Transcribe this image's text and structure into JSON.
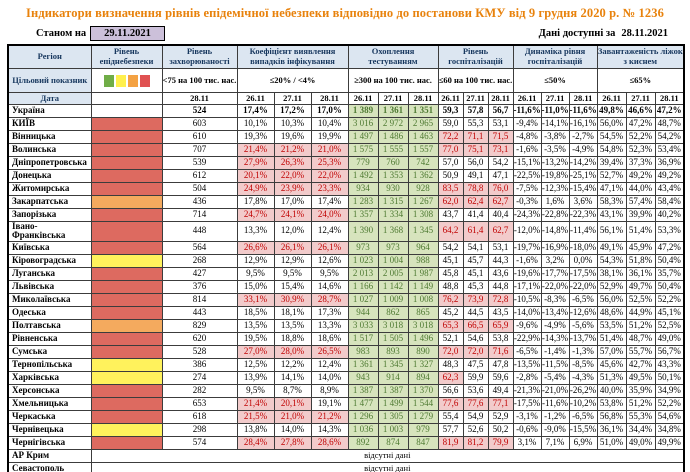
{
  "title": "Індикатори визначення рівнів епідемічної небезпеки відповідно до постанови КМУ від 9 грудня 2020 р. № 1236",
  "as_of": {
    "label": "Станом на",
    "date": "29.11.2021"
  },
  "data_available": {
    "label": "Дані доступні за",
    "date": "28.11.2021"
  },
  "columns": {
    "region": "Регіон",
    "target": "Цільовий показник",
    "date": "Дата",
    "groups": [
      {
        "title": "Рівень епіднебезпеки",
        "target": ""
      },
      {
        "title": "Рівень захворюваності",
        "target": "<75 на 100 тис. нас.",
        "date": "28.11"
      },
      {
        "title": "Коефіцієнт виявлення випадків інфікування",
        "target": "≤20% / <4%"
      },
      {
        "title": "Охоплення тестуванням",
        "target": "≥300 на 100 тис. нас."
      },
      {
        "title": "Рівень госпіталізацій",
        "target": "≤60 на 100 тис. нас."
      },
      {
        "title": "Динаміка рівня госпіталізацій",
        "target": "≤50%"
      },
      {
        "title": "Завантаженість ліжок з киснем",
        "target": "≤65%"
      }
    ]
  },
  "dates": [
    "26.11",
    "27.11",
    "28.11"
  ],
  "legend_colors": [
    "#70AD47",
    "#FFF04D",
    "#F4A243",
    "#E05252"
  ],
  "level_colors": {
    "red": "#DD6A60",
    "orange": "#F4AA5E",
    "yellow": "#FFF25C",
    "none": "#FFFFFF"
  },
  "no_data_text": "відсутні дані",
  "rows": [
    {
      "region": "Україна",
      "level": "none",
      "incidence": "524",
      "coef": [
        "17,4%",
        "17,2%",
        "17,0%"
      ],
      "test": [
        "1 389",
        "1 361",
        "1 351"
      ],
      "hosp": [
        "59,3",
        "57,8",
        "56,7"
      ],
      "dyn": [
        "-11,6%",
        "-11,0%",
        "-11,6%"
      ],
      "beds": [
        "49,8%",
        "46,6%",
        "47,2%"
      ]
    },
    {
      "region": "КИЇВ",
      "level": "red",
      "incidence": "603",
      "coef": [
        "10,1%",
        "10,3%",
        "10,4%"
      ],
      "test": [
        "3 016",
        "2 972",
        "2 965"
      ],
      "hosp": [
        "59,0",
        "55,3",
        "53,1"
      ],
      "dyn": [
        "-9,4%",
        "-14,1%",
        "-16,1%"
      ],
      "beds": [
        "56,0%",
        "47,2%",
        "48,7%"
      ]
    },
    {
      "region": "Вінницька",
      "level": "red",
      "incidence": "610",
      "coef": [
        "19,3%",
        "19,6%",
        "19,9%"
      ],
      "test": [
        "1 497",
        "1 486",
        "1 463"
      ],
      "hosp": [
        "72,2",
        "71,1",
        "71,5"
      ],
      "dyn": [
        "-4,8%",
        "-3,8%",
        "-2,7%"
      ],
      "beds": [
        "54,5%",
        "52,2%",
        "54,2%"
      ]
    },
    {
      "region": "Волинська",
      "level": "red",
      "incidence": "707",
      "coef": [
        "21,4%",
        "21,2%",
        "21,0%"
      ],
      "test": [
        "1 575",
        "1 555",
        "1 557"
      ],
      "hosp": [
        "77,0",
        "75,1",
        "73,1"
      ],
      "dyn": [
        "-1,6%",
        "-3,5%",
        "-4,9%"
      ],
      "beds": [
        "54,8%",
        "52,3%",
        "53,4%"
      ]
    },
    {
      "region": "Дніпропетровська",
      "level": "red",
      "incidence": "539",
      "coef": [
        "27,9%",
        "26,3%",
        "25,3%"
      ],
      "test": [
        "779",
        "760",
        "742"
      ],
      "hosp": [
        "57,0",
        "56,0",
        "54,2"
      ],
      "dyn": [
        "-15,1%",
        "-13,2%",
        "-14,2%"
      ],
      "beds": [
        "39,4%",
        "37,3%",
        "36,9%"
      ]
    },
    {
      "region": "Донецька",
      "level": "red",
      "incidence": "612",
      "coef": [
        "20,1%",
        "22,0%",
        "22,0%"
      ],
      "test": [
        "1 492",
        "1 353",
        "1 362"
      ],
      "hosp": [
        "50,9",
        "49,1",
        "47,1"
      ],
      "dyn": [
        "-22,5%",
        "-19,8%",
        "-25,1%"
      ],
      "beds": [
        "52,7%",
        "49,2%",
        "49,2%"
      ]
    },
    {
      "region": "Житомирська",
      "level": "red",
      "incidence": "504",
      "coef": [
        "24,9%",
        "23,9%",
        "23,3%"
      ],
      "test": [
        "934",
        "930",
        "928"
      ],
      "hosp": [
        "83,5",
        "78,8",
        "76,0"
      ],
      "dyn": [
        "-7,5%",
        "-12,3%",
        "-15,4%"
      ],
      "beds": [
        "47,1%",
        "44,0%",
        "43,4%"
      ]
    },
    {
      "region": "Закарпатська",
      "level": "orange",
      "incidence": "436",
      "coef": [
        "17,8%",
        "17,0%",
        "17,4%"
      ],
      "test": [
        "1 283",
        "1 315",
        "1 267"
      ],
      "hosp": [
        "62,0",
        "62,4",
        "62,7"
      ],
      "dyn": [
        "-0,3%",
        "1,6%",
        "3,6%"
      ],
      "beds": [
        "58,3%",
        "57,4%",
        "58,4%"
      ]
    },
    {
      "region": "Запорізька",
      "level": "red",
      "incidence": "714",
      "coef": [
        "24,7%",
        "24,1%",
        "24,0%"
      ],
      "test": [
        "1 357",
        "1 334",
        "1 308"
      ],
      "hosp": [
        "43,7",
        "41,4",
        "40,4"
      ],
      "dyn": [
        "-24,3%",
        "-22,8%",
        "-22,3%"
      ],
      "beds": [
        "43,1%",
        "39,9%",
        "40,2%"
      ]
    },
    {
      "region": "Івано-Франківська",
      "level": "red",
      "incidence": "448",
      "coef": [
        "13,3%",
        "12,0%",
        "12,4%"
      ],
      "test": [
        "1 390",
        "1 368",
        "1 345"
      ],
      "hosp": [
        "64,2",
        "61,4",
        "62,7"
      ],
      "dyn": [
        "-12,0%",
        "-14,8%",
        "-11,4%"
      ],
      "beds": [
        "56,1%",
        "51,4%",
        "53,3%"
      ]
    },
    {
      "region": "Київська",
      "level": "red",
      "incidence": "564",
      "coef": [
        "26,6%",
        "26,1%",
        "26,1%"
      ],
      "test": [
        "973",
        "973",
        "964"
      ],
      "hosp": [
        "54,2",
        "54,1",
        "53,1"
      ],
      "dyn": [
        "-19,7%",
        "-16,9%",
        "-18,0%"
      ],
      "beds": [
        "49,1%",
        "45,9%",
        "47,2%"
      ]
    },
    {
      "region": "Кіровоградська",
      "level": "yellow",
      "incidence": "268",
      "coef": [
        "12,9%",
        "12,9%",
        "12,6%"
      ],
      "test": [
        "1 023",
        "1 004",
        "988"
      ],
      "hosp": [
        "45,1",
        "45,7",
        "44,3"
      ],
      "dyn": [
        "-1,6%",
        "3,2%",
        "0,0%"
      ],
      "beds": [
        "54,3%",
        "51,8%",
        "50,4%"
      ]
    },
    {
      "region": "Луганська",
      "level": "red",
      "incidence": "427",
      "coef": [
        "9,5%",
        "9,5%",
        "9,5%"
      ],
      "test": [
        "2 013",
        "2 005",
        "1 987"
      ],
      "hosp": [
        "45,8",
        "45,1",
        "43,6"
      ],
      "dyn": [
        "-19,6%",
        "-17,7%",
        "-17,5%"
      ],
      "beds": [
        "38,1%",
        "36,1%",
        "35,7%"
      ]
    },
    {
      "region": "Львівська",
      "level": "red",
      "incidence": "376",
      "coef": [
        "15,0%",
        "15,4%",
        "14,6%"
      ],
      "test": [
        "1 166",
        "1 142",
        "1 149"
      ],
      "hosp": [
        "48,8",
        "45,3",
        "44,8"
      ],
      "dyn": [
        "-17,1%",
        "-22,0%",
        "-22,0%"
      ],
      "beds": [
        "52,9%",
        "49,7%",
        "50,4%"
      ]
    },
    {
      "region": "Миколаївська",
      "level": "red",
      "incidence": "814",
      "coef": [
        "33,1%",
        "30,9%",
        "28,7%"
      ],
      "test": [
        "1 027",
        "1 009",
        "1 008"
      ],
      "hosp": [
        "76,2",
        "73,9",
        "72,8"
      ],
      "dyn": [
        "-10,5%",
        "-8,3%",
        "-6,5%"
      ],
      "beds": [
        "56,0%",
        "52,5%",
        "52,2%"
      ]
    },
    {
      "region": "Одеська",
      "level": "red",
      "incidence": "443",
      "coef": [
        "18,5%",
        "18,1%",
        "17,3%"
      ],
      "test": [
        "944",
        "862",
        "865"
      ],
      "hosp": [
        "45,2",
        "44,5",
        "43,5"
      ],
      "dyn": [
        "-14,0%",
        "-13,4%",
        "-12,6%"
      ],
      "beds": [
        "48,6%",
        "44,9%",
        "45,1%"
      ]
    },
    {
      "region": "Полтавська",
      "level": "orange",
      "incidence": "829",
      "coef": [
        "13,5%",
        "13,5%",
        "13,3%"
      ],
      "test": [
        "3 033",
        "3 018",
        "3 018"
      ],
      "hosp": [
        "65,3",
        "66,5",
        "65,9"
      ],
      "dyn": [
        "-9,6%",
        "-4,9%",
        "-5,6%"
      ],
      "beds": [
        "53,5%",
        "51,2%",
        "52,5%"
      ]
    },
    {
      "region": "Рівненська",
      "level": "red",
      "incidence": "620",
      "coef": [
        "19,5%",
        "18,8%",
        "18,6%"
      ],
      "test": [
        "1 517",
        "1 505",
        "1 496"
      ],
      "hosp": [
        "52,1",
        "54,6",
        "53,8"
      ],
      "dyn": [
        "-22,9%",
        "-14,3%",
        "-13,7%"
      ],
      "beds": [
        "51,4%",
        "48,7%",
        "49,0%"
      ]
    },
    {
      "region": "Сумська",
      "level": "red",
      "incidence": "528",
      "coef": [
        "27,0%",
        "28,0%",
        "26,5%"
      ],
      "test": [
        "983",
        "893",
        "890"
      ],
      "hosp": [
        "72,0",
        "72,0",
        "71,6"
      ],
      "dyn": [
        "-6,5%",
        "-1,4%",
        "-1,3%"
      ],
      "beds": [
        "57,0%",
        "55,7%",
        "56,7%"
      ]
    },
    {
      "region": "Тернопільська",
      "level": "yellow",
      "incidence": "386",
      "coef": [
        "12,5%",
        "12,2%",
        "12,4%"
      ],
      "test": [
        "1 361",
        "1 345",
        "1 327"
      ],
      "hosp": [
        "48,3",
        "47,5",
        "47,8"
      ],
      "dyn": [
        "-13,5%",
        "-11,5%",
        "-8,5%"
      ],
      "beds": [
        "45,6%",
        "42,7%",
        "43,3%"
      ]
    },
    {
      "region": "Харківська",
      "level": "yellow",
      "incidence": "274",
      "coef": [
        "13,9%",
        "14,1%",
        "14,0%"
      ],
      "test": [
        "943",
        "914",
        "894"
      ],
      "hosp": [
        "62,3",
        "59,9",
        "59,6"
      ],
      "dyn": [
        "-2,8%",
        "-5,4%",
        "-4,3%"
      ],
      "beds": [
        "51,3%",
        "49,5%",
        "50,1%"
      ]
    },
    {
      "region": "Херсонська",
      "level": "red",
      "incidence": "282",
      "coef": [
        "9,5%",
        "8,7%",
        "8,9%"
      ],
      "test": [
        "1 387",
        "1 387",
        "1 370"
      ],
      "hosp": [
        "56,6",
        "53,6",
        "49,4"
      ],
      "dyn": [
        "-21,3%",
        "-21,0%",
        "-26,2%"
      ],
      "beds": [
        "40,0%",
        "35,9%",
        "34,9%"
      ]
    },
    {
      "region": "Хмельницька",
      "level": "red",
      "incidence": "653",
      "coef": [
        "21,4%",
        "20,1%",
        "19,1%"
      ],
      "test": [
        "1 477",
        "1 499",
        "1 544"
      ],
      "hosp": [
        "77,6",
        "77,6",
        "77,1"
      ],
      "dyn": [
        "-17,5%",
        "-11,6%",
        "-10,2%"
      ],
      "beds": [
        "53,8%",
        "51,2%",
        "52,2%"
      ]
    },
    {
      "region": "Черкаська",
      "level": "red",
      "incidence": "618",
      "coef": [
        "21,5%",
        "21,0%",
        "21,2%"
      ],
      "test": [
        "1 296",
        "1 305",
        "1 279"
      ],
      "hosp": [
        "55,4",
        "54,9",
        "52,9"
      ],
      "dyn": [
        "-3,1%",
        "-1,2%",
        "-6,5%"
      ],
      "beds": [
        "56,8%",
        "55,3%",
        "54,6%"
      ]
    },
    {
      "region": "Чернівецька",
      "level": "yellow",
      "incidence": "298",
      "coef": [
        "13,8%",
        "14,0%",
        "14,3%"
      ],
      "test": [
        "1 036",
        "1 003",
        "979"
      ],
      "hosp": [
        "57,7",
        "52,6",
        "50,2"
      ],
      "dyn": [
        "-0,6%",
        "-9,0%",
        "-15,5%"
      ],
      "beds": [
        "36,1%",
        "34,4%",
        "34,8%"
      ]
    },
    {
      "region": "Чернігівська",
      "level": "red",
      "incidence": "574",
      "coef": [
        "28,4%",
        "27,8%",
        "28,6%"
      ],
      "test": [
        "892",
        "874",
        "847"
      ],
      "hosp": [
        "81,9",
        "81,2",
        "79,9"
      ],
      "dyn": [
        "3,1%",
        "7,1%",
        "6,9%"
      ],
      "beds": [
        "51,0%",
        "49,0%",
        "49,9%"
      ]
    },
    {
      "region": "АР Крим",
      "level": "none",
      "no_data": true
    },
    {
      "region": "Севастополь",
      "level": "none",
      "no_data": true
    }
  ]
}
